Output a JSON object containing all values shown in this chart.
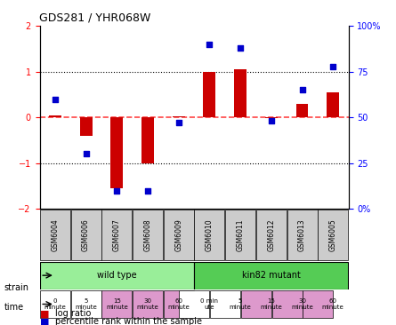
{
  "title": "GDS281 / YHR068W",
  "samples": [
    "GSM6004",
    "GSM6006",
    "GSM6007",
    "GSM6008",
    "GSM6009",
    "GSM6010",
    "GSM6011",
    "GSM6012",
    "GSM6013",
    "GSM6005"
  ],
  "log_ratio": [
    0.05,
    -0.4,
    -1.55,
    -1.0,
    0.02,
    1.0,
    1.05,
    -0.02,
    0.3,
    0.55
  ],
  "percentile": [
    60,
    30,
    10,
    10,
    47,
    90,
    88,
    48,
    65,
    78
  ],
  "ylim": [
    -2,
    2
  ],
  "yticks_left": [
    -2,
    -1,
    0,
    1,
    2
  ],
  "yticks_right": [
    0,
    25,
    50,
    75,
    100
  ],
  "right_axis_labels": [
    "0%",
    "25",
    "50",
    "75",
    "100%"
  ],
  "bar_color": "#cc0000",
  "dot_color": "#0000cc",
  "zero_line_color": "#ff4444",
  "grid_color": "#000000",
  "strain_wild_color": "#99ee99",
  "strain_kin82_color": "#55cc55",
  "time_white_color": "#ffffff",
  "time_pink_color": "#dd99cc",
  "header_bg": "#cccccc",
  "wild_label": "wild type",
  "kin82_label": "kin82 mutant",
  "strain_label": "strain",
  "time_label": "time",
  "time_values_wild": [
    "0\nminute",
    "5\nminute",
    "15\nminute",
    "30\nminute",
    "60\nminute"
  ],
  "time_values_kin82": [
    "0 min\nute",
    "5\nminute",
    "15\nminute",
    "30\nminute",
    "60\nminute"
  ],
  "time_colors_wild": [
    "#ffffff",
    "#ffffff",
    "#dd99cc",
    "#dd99cc",
    "#dd99cc"
  ],
  "time_colors_kin82": [
    "#ffffff",
    "#ffffff",
    "#dd99cc",
    "#dd99cc",
    "#dd99cc"
  ],
  "legend_log_ratio": "log ratio",
  "legend_percentile": "percentile rank within the sample"
}
